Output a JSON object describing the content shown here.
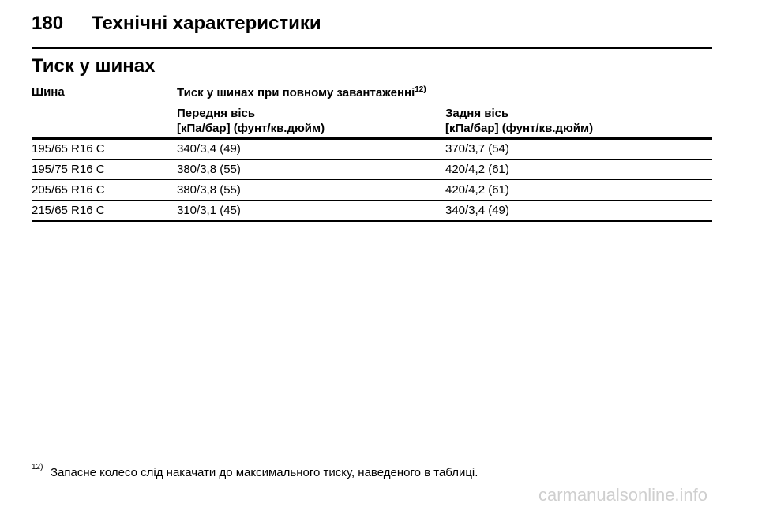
{
  "header": {
    "page_number": "180",
    "chapter_title": "Технічні характеристики"
  },
  "section_title": "Тиск у шинах",
  "table": {
    "col_tyre": "Шина",
    "col_pressure": "Тиск у шинах при повному завантаженні",
    "col_pressure_ref": "12)",
    "front_axle": "Передня вісь",
    "front_units": "[кПа/бар] (фунт/кв.дюйм)",
    "rear_axle": "Задня вісь",
    "rear_units": "[кПа/бар] (фунт/кв.дюйм)",
    "rows": [
      {
        "tyre": "195/65 R16 C",
        "front": "340/3,4 (49)",
        "rear": "370/3,7 (54)"
      },
      {
        "tyre": "195/75 R16 C",
        "front": "380/3,8 (55)",
        "rear": "420/4,2 (61)"
      },
      {
        "tyre": "205/65 R16 C",
        "front": "380/3,8 (55)",
        "rear": "420/4,2 (61)"
      },
      {
        "tyre": "215/65 R16 C",
        "front": "310/3,1 (45)",
        "rear": "340/3,4 (49)"
      }
    ]
  },
  "footnote": {
    "mark": "12)",
    "text": "Запасне колесо слід накачати до максимального тиску, наведеного в таблиці."
  },
  "watermark": "carmanualsonline.info"
}
